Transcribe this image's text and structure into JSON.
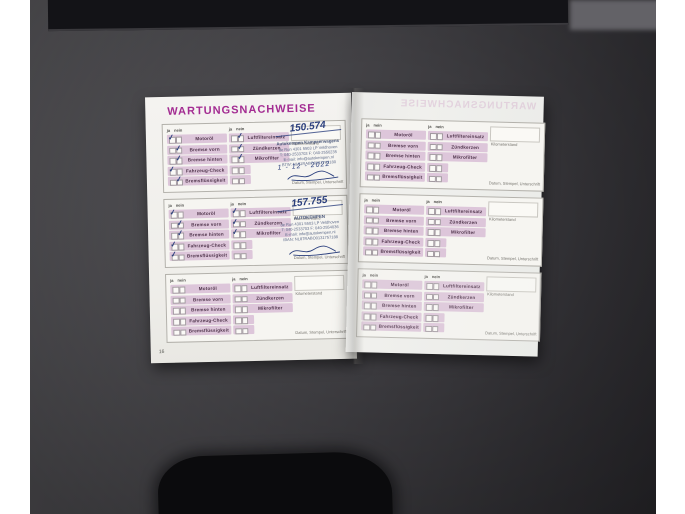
{
  "photo": {
    "background": "#3d3c40",
    "table_band": "#131317",
    "paper": "#f2f1ed",
    "accent_magenta": "#a32c92",
    "row_pink": "#ddc6da",
    "ink_blue": "#2b3f7d"
  },
  "booklet": {
    "title": "WARTUNGSNACHWEISE",
    "title_ghost": "WARTUNGSNACHWEISE",
    "page_number": "16",
    "labels": {
      "ja": "ja",
      "nein": "nein",
      "kilometerstand": "Kilometerstand",
      "datum": "Datum, Stempel, Unterschrift"
    },
    "row_labels_left": [
      "Motoröl",
      "Bremse vorn",
      "Bremse hinten",
      "Fahrzeug-Check",
      "Bremsflüssigkeit"
    ],
    "row_labels_right": [
      "Luftfiltereinsatz",
      "Zündkerzen",
      "Mikrofilter",
      "",
      ""
    ],
    "blocks": [
      {
        "page": "left",
        "km": "150.574",
        "date": "1 - 12 - 2022",
        "stamp": [
          "Autokempen Kampeerwagens",
          "de Run 4301 5503 LP Veldhoven",
          "T: 040-2533703  F: 040-2550235",
          "E-mail: info@autokempen.nl",
          "BTW: NL81RABO0131762180"
        ],
        "signed": true,
        "checks_left": [
          "ja",
          "nein",
          "nein",
          "ja",
          "nein"
        ],
        "checks_right": [
          "nein",
          "nein",
          "nein",
          null,
          null
        ]
      },
      {
        "page": "left",
        "km": "157.755",
        "date": "",
        "stamp": [
          "AUTOKEMPEN",
          "de Run 4301 5503 LP Veldhoven",
          "T: 040-2533703  F: 040-2554036",
          "E-mail: info@autokempen.nl",
          "IBAN: NL87RABO0131757188"
        ],
        "signed": true,
        "checks_left": [
          "ja",
          "nein",
          "nein",
          "ja",
          "ja"
        ],
        "checks_right": [
          "ja",
          "ja",
          "ja",
          null,
          null
        ]
      },
      {
        "page": "left",
        "km": "",
        "date": "",
        "stamp": [],
        "signed": false,
        "checks_left": [
          null,
          null,
          null,
          null,
          null
        ],
        "checks_right": [
          null,
          null,
          null,
          null,
          null
        ]
      },
      {
        "page": "right",
        "km": "",
        "date": "",
        "stamp": [],
        "signed": false,
        "checks_left": [
          null,
          null,
          null,
          null,
          null
        ],
        "checks_right": [
          null,
          null,
          null,
          null,
          null
        ]
      },
      {
        "page": "right",
        "km": "",
        "date": "",
        "stamp": [],
        "signed": false,
        "checks_left": [
          null,
          null,
          null,
          null,
          null
        ],
        "checks_right": [
          null,
          null,
          null,
          null,
          null
        ]
      },
      {
        "page": "right",
        "km": "",
        "date": "",
        "stamp": [],
        "signed": false,
        "checks_left": [
          null,
          null,
          null,
          null,
          null
        ],
        "checks_right": [
          null,
          null,
          null,
          null,
          null
        ]
      }
    ]
  }
}
